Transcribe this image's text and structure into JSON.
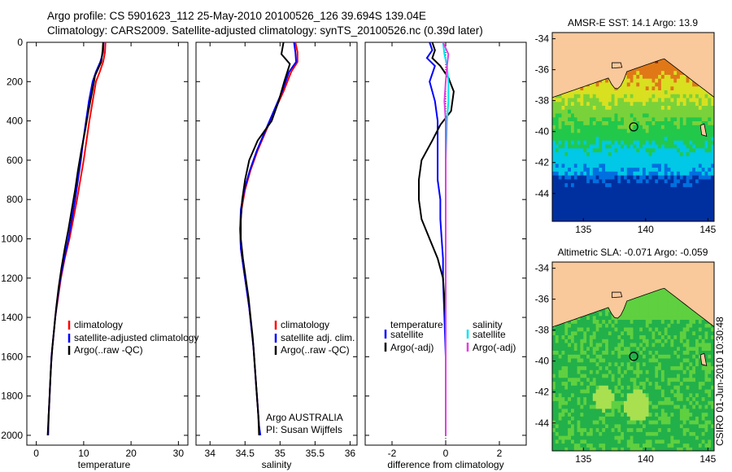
{
  "header": {
    "title_line1": "Argo profile: CS 5901623_112 25-May-2010 20100526_126 39.694S 139.04E",
    "title_line2": "Climatology: CARS2009. Satellite-adjusted climatology: synTS_20100526.nc (0.39d later)"
  },
  "footer": {
    "stamp": "CSIRO 01-Jun-2010 10:30:48"
  },
  "colors": {
    "climatology": "#ff0000",
    "satellite": "#0000ff",
    "argo": "#000000",
    "satellite_diff_salinity": "#00e5ee",
    "argo_diff_salinity": "#e040e0",
    "land": "#f9c89b"
  },
  "chart_data": [
    {
      "type": "line",
      "xlabel": "temperature",
      "ylabel": "",
      "xlim": [
        -2,
        32
      ],
      "ylim": [
        0,
        2050
      ],
      "y_reversed": true,
      "xticks": [
        0,
        10,
        20,
        30
      ],
      "yticks": [
        0,
        200,
        400,
        600,
        800,
        1000,
        1200,
        1400,
        1600,
        1800,
        2000
      ],
      "legend": {
        "placement": "bottom-right",
        "entries": [
          "climatology",
          "satellite-adjusted climatology",
          "Argo(..raw -QC)"
        ]
      },
      "series": [
        {
          "name": "climatology",
          "color": "#ff0000",
          "points": [
            [
              14.6,
              0
            ],
            [
              14.5,
              50
            ],
            [
              14.1,
              100
            ],
            [
              13.4,
              150
            ],
            [
              12.6,
              200
            ],
            [
              11.9,
              300
            ],
            [
              11.2,
              400
            ],
            [
              10.6,
              500
            ],
            [
              10.0,
              600
            ],
            [
              9.3,
              700
            ],
            [
              8.6,
              800
            ],
            [
              7.8,
              900
            ],
            [
              7.0,
              1000
            ],
            [
              6.0,
              1100
            ],
            [
              5.2,
              1200
            ],
            [
              4.6,
              1300
            ],
            [
              4.0,
              1400
            ],
            [
              3.6,
              1500
            ],
            [
              3.2,
              1600
            ],
            [
              3.0,
              1700
            ],
            [
              2.8,
              1800
            ],
            [
              2.6,
              1900
            ],
            [
              2.5,
              2000
            ]
          ]
        },
        {
          "name": "satellite-adjusted climatology",
          "color": "#0000ff",
          "points": [
            [
              14.2,
              0
            ],
            [
              14.1,
              50
            ],
            [
              13.5,
              100
            ],
            [
              12.6,
              150
            ],
            [
              11.9,
              200
            ],
            [
              11.1,
              300
            ],
            [
              10.5,
              400
            ],
            [
              9.9,
              500
            ],
            [
              9.4,
              600
            ],
            [
              8.8,
              700
            ],
            [
              8.2,
              800
            ],
            [
              7.5,
              900
            ],
            [
              6.8,
              1000
            ],
            [
              5.9,
              1100
            ],
            [
              5.1,
              1200
            ],
            [
              4.5,
              1300
            ],
            [
              4.0,
              1400
            ],
            [
              3.6,
              1500
            ],
            [
              3.2,
              1600
            ],
            [
              3.0,
              1700
            ],
            [
              2.8,
              1800
            ],
            [
              2.6,
              1900
            ],
            [
              2.5,
              2000
            ]
          ]
        },
        {
          "name": "Argo(..raw -QC)",
          "color": "#000000",
          "points": [
            [
              14.1,
              0
            ],
            [
              14.0,
              40
            ],
            [
              13.7,
              100
            ],
            [
              12.4,
              170
            ],
            [
              11.8,
              250
            ],
            [
              11.0,
              350
            ],
            [
              10.3,
              450
            ],
            [
              9.5,
              550
            ],
            [
              8.8,
              650
            ],
            [
              8.2,
              750
            ],
            [
              7.5,
              850
            ],
            [
              6.8,
              950
            ],
            [
              6.0,
              1050
            ],
            [
              5.3,
              1150
            ],
            [
              4.7,
              1250
            ],
            [
              4.2,
              1350
            ],
            [
              3.8,
              1450
            ],
            [
              3.4,
              1550
            ],
            [
              3.1,
              1650
            ],
            [
              2.9,
              1750
            ],
            [
              2.7,
              1850
            ],
            [
              2.5,
              1950
            ],
            [
              2.4,
              2000
            ]
          ]
        }
      ]
    },
    {
      "type": "line",
      "xlabel": "salinity",
      "ylabel": "",
      "xlim": [
        33.8,
        36.1
      ],
      "ylim": [
        0,
        2050
      ],
      "y_reversed": true,
      "xticks": [
        34,
        34.5,
        35,
        35.5,
        36
      ],
      "legend": {
        "placement": "bottom-right",
        "entries": [
          "climatology",
          "satellite adj. clim.",
          "Argo(..raw -QC)"
        ]
      },
      "annotation": [
        "Argo AUSTRALIA",
        "PI: Susan Wijffels"
      ],
      "series": [
        {
          "name": "climatology",
          "color": "#ff0000",
          "points": [
            [
              35.22,
              0
            ],
            [
              35.25,
              50
            ],
            [
              35.25,
              100
            ],
            [
              35.16,
              150
            ],
            [
              35.05,
              250
            ],
            [
              34.92,
              350
            ],
            [
              34.8,
              450
            ],
            [
              34.68,
              550
            ],
            [
              34.58,
              650
            ],
            [
              34.5,
              750
            ],
            [
              34.45,
              850
            ],
            [
              34.43,
              950
            ],
            [
              34.44,
              1050
            ],
            [
              34.48,
              1150
            ],
            [
              34.52,
              1250
            ],
            [
              34.56,
              1350
            ],
            [
              34.59,
              1450
            ],
            [
              34.62,
              1550
            ],
            [
              34.64,
              1650
            ],
            [
              34.66,
              1750
            ],
            [
              34.68,
              1850
            ],
            [
              34.7,
              1950
            ],
            [
              34.71,
              2000
            ]
          ]
        },
        {
          "name": "satellite adj. clim.",
          "color": "#0000ff",
          "points": [
            [
              35.2,
              0
            ],
            [
              35.22,
              50
            ],
            [
              35.23,
              100
            ],
            [
              35.13,
              150
            ],
            [
              35.03,
              250
            ],
            [
              34.91,
              350
            ],
            [
              34.79,
              450
            ],
            [
              34.67,
              550
            ],
            [
              34.57,
              650
            ],
            [
              34.49,
              750
            ],
            [
              34.44,
              850
            ],
            [
              34.43,
              950
            ],
            [
              34.44,
              1050
            ],
            [
              34.48,
              1150
            ],
            [
              34.52,
              1250
            ],
            [
              34.56,
              1350
            ],
            [
              34.59,
              1450
            ],
            [
              34.62,
              1550
            ],
            [
              34.64,
              1650
            ],
            [
              34.66,
              1750
            ],
            [
              34.68,
              1850
            ],
            [
              34.7,
              1950
            ],
            [
              34.72,
              2000
            ]
          ]
        },
        {
          "name": "Argo(..raw -QC)",
          "color": "#000000",
          "points": [
            [
              35.05,
              0
            ],
            [
              35.02,
              60
            ],
            [
              35.14,
              110
            ],
            [
              35.06,
              200
            ],
            [
              34.98,
              300
            ],
            [
              34.88,
              400
            ],
            [
              34.68,
              500
            ],
            [
              34.56,
              600
            ],
            [
              34.5,
              700
            ],
            [
              34.46,
              800
            ],
            [
              34.44,
              900
            ],
            [
              34.44,
              1000
            ],
            [
              34.47,
              1100
            ],
            [
              34.51,
              1200
            ],
            [
              34.55,
              1300
            ],
            [
              34.58,
              1400
            ],
            [
              34.61,
              1500
            ],
            [
              34.63,
              1600
            ],
            [
              34.65,
              1700
            ],
            [
              34.67,
              1800
            ],
            [
              34.69,
              1900
            ],
            [
              34.7,
              2000
            ]
          ]
        }
      ]
    },
    {
      "type": "line",
      "xlabel": "difference from climatology",
      "ylabel": "",
      "xlim": [
        -3.0,
        3.0
      ],
      "ylim": [
        0,
        2050
      ],
      "y_reversed": true,
      "xticks": [
        -2,
        0,
        2
      ],
      "legend": {
        "placement": "bottom",
        "temperature_entries": [
          "temperature",
          "satellite",
          "Argo(-adj)"
        ],
        "salinity_entries": [
          "salinity",
          "satellite",
          "Argo(-adj)"
        ]
      },
      "series": [
        {
          "name": "temperature satellite",
          "color": "#0000ff",
          "points": [
            [
              -0.6,
              0
            ],
            [
              -0.5,
              40
            ],
            [
              -0.7,
              80
            ],
            [
              -0.4,
              120
            ],
            [
              -0.6,
              200
            ],
            [
              -0.4,
              300
            ],
            [
              -0.3,
              400
            ],
            [
              -0.3,
              500
            ],
            [
              -0.3,
              600
            ],
            [
              -0.3,
              700
            ],
            [
              -0.2,
              800
            ],
            [
              -0.2,
              900
            ],
            [
              -0.15,
              1000
            ],
            [
              -0.1,
              1100
            ],
            [
              -0.1,
              1200
            ],
            [
              -0.05,
              1400
            ],
            [
              0,
              1600
            ],
            [
              0,
              2000
            ]
          ]
        },
        {
          "name": "temperature Argo(-adj)",
          "color": "#000000",
          "points": [
            [
              -0.5,
              0
            ],
            [
              -0.4,
              40
            ],
            [
              -0.5,
              80
            ],
            [
              -0.2,
              120
            ],
            [
              0.1,
              180
            ],
            [
              0.3,
              250
            ],
            [
              0.2,
              350
            ],
            [
              -0.2,
              420
            ],
            [
              -0.5,
              500
            ],
            [
              -0.9,
              600
            ],
            [
              -1.0,
              700
            ],
            [
              -1.0,
              800
            ],
            [
              -0.9,
              900
            ],
            [
              -0.6,
              1000
            ],
            [
              -0.3,
              1100
            ],
            [
              -0.1,
              1200
            ],
            [
              0,
              1400
            ],
            [
              0,
              2000
            ]
          ]
        },
        {
          "name": "salinity satellite",
          "color": "#00e5ee",
          "points": [
            [
              -0.1,
              0
            ],
            [
              -0.05,
              60
            ],
            [
              0.05,
              120
            ],
            [
              0.1,
              200
            ],
            [
              0.1,
              300
            ],
            [
              0.05,
              400
            ],
            [
              0.0,
              600
            ],
            [
              0.0,
              800
            ],
            [
              0.0,
              1000
            ],
            [
              0.0,
              1400
            ],
            [
              0.0,
              2000
            ]
          ]
        },
        {
          "name": "salinity Argo(-adj)",
          "color": "#e040e0",
          "points": [
            [
              -0.1,
              0
            ],
            [
              0.1,
              60
            ],
            [
              0.05,
              120
            ],
            [
              0.0,
              200
            ],
            [
              -0.05,
              300
            ],
            [
              0.0,
              400
            ],
            [
              0.0,
              600
            ],
            [
              0.0,
              800
            ],
            [
              0.0,
              1000
            ],
            [
              0.0,
              1400
            ],
            [
              0.0,
              2000
            ]
          ]
        }
      ]
    },
    {
      "type": "heatmap",
      "title": "AMSR-E SST: 14.1 Argo: 13.9",
      "xlim": [
        132.5,
        145.5
      ],
      "ylim": [
        -45.8,
        -33.6
      ],
      "xticks": [
        135,
        140,
        145
      ],
      "yticks": [
        -34,
        -36,
        -38,
        -40,
        -42,
        -44
      ],
      "marker": {
        "lon": 139.04,
        "lat": -39.694
      }
    },
    {
      "type": "heatmap",
      "title": "Altimetric SLA: -0.071 Argo: -0.059",
      "xlim": [
        132.5,
        145.5
      ],
      "ylim": [
        -45.8,
        -33.6
      ],
      "xticks": [
        135,
        140,
        145
      ],
      "yticks": [
        -34,
        -36,
        -38,
        -40,
        -42,
        -44
      ],
      "marker": {
        "lon": 139.04,
        "lat": -39.694
      }
    }
  ]
}
